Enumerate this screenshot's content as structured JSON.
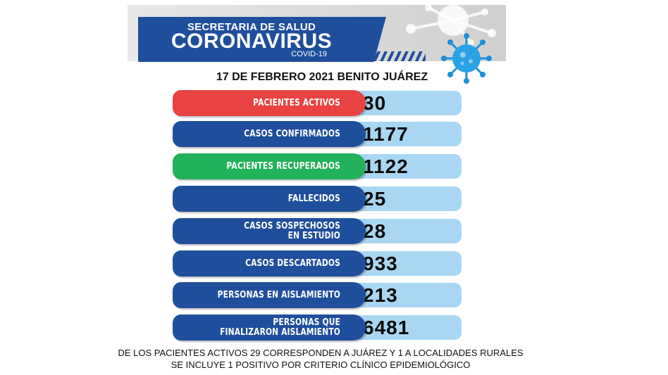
{
  "header": {
    "line1": "SECRETARIA DE SALUD",
    "line2": "CORONAVIRUS",
    "line3": "COVID-19"
  },
  "date_line": "17 DE FEBRERO 2021 BENITO JUÁREZ",
  "rows": [
    {
      "label": "PACIENTES ACTIVOS",
      "value": "30",
      "color": "#e84242"
    },
    {
      "label": "CASOS CONFIRMADOS",
      "value": "1177",
      "color": "#1f4f9c"
    },
    {
      "label": "PACIENTES RECUPERADOS",
      "value": "1122",
      "color": "#22b25a"
    },
    {
      "label": "FALLECIDOS",
      "value": "25",
      "color": "#1f4f9c"
    },
    {
      "label_lines": [
        "CASOS SOSPECHOSOS",
        "EN ESTUDIO"
      ],
      "value": "28",
      "color": "#1f4f9c"
    },
    {
      "label": "CASOS DESCARTADOS",
      "value": "933",
      "color": "#1f4f9c"
    },
    {
      "label": "PERSONAS EN AISLAMIENTO",
      "value": "213",
      "color": "#1f4f9c"
    },
    {
      "label_lines": [
        "PERSONAS QUE",
        "FINALIZARON AISLAMIENTO"
      ],
      "value": "6481",
      "color": "#1f4f9c"
    }
  ],
  "footer": {
    "line1": "DE LOS PACIENTES ACTIVOS 29 CORRESPONDEN A JUÁREZ Y 1 A LOCALIDADES RURALES",
    "line2": "SE INCLUYE 1 POSITIVO  POR  CRITERIO CLÍNICO EPIDEMIOLÓGICO"
  },
  "icons": {
    "virus_gray": "virus-icon",
    "virus_blue": "virus-icon"
  }
}
